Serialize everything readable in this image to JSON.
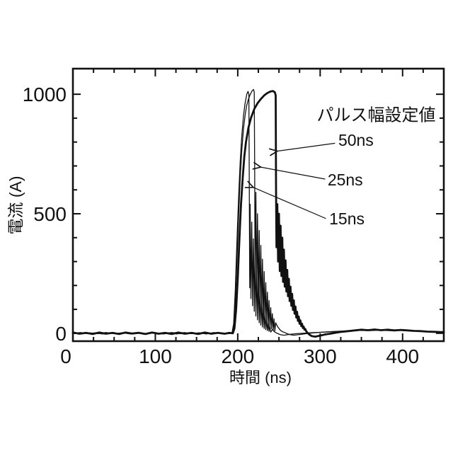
{
  "figure": {
    "background": "#ffffff",
    "ink": "#111111"
  },
  "chart_data": {
    "type": "line",
    "title": "",
    "xlabel": "時間 (ns)",
    "ylabel": "電流 (A)",
    "xlim": [
      0,
      450
    ],
    "ylim": [
      -33,
      1107
    ],
    "x_major_ticks": [
      0,
      100,
      200,
      300,
      400
    ],
    "x_minor_step": 25,
    "y_major_ticks": [
      0,
      500,
      1000
    ],
    "y_minor_step": 100,
    "grid": false,
    "legend_position": "none",
    "annotation_title": "パルス幅設定値",
    "annotation_title_at": [
      368,
      890
    ],
    "annotations": [
      {
        "label": "50ns",
        "label_at": [
          322,
          784
        ],
        "arrow_from": [
          318,
          795
        ],
        "arrow_to": [
          248,
          762
        ]
      },
      {
        "label": "25ns",
        "label_at": [
          309,
          618
        ],
        "arrow_from": [
          306,
          645
        ],
        "arrow_to": [
          228,
          695
        ]
      },
      {
        "label": "15ns",
        "label_at": [
          311,
          456
        ],
        "arrow_from": [
          307,
          480
        ],
        "arrow_to": [
          219,
          610
        ]
      }
    ],
    "series": [
      {
        "name": "15ns",
        "stroke_width": 1.3,
        "points": [
          [
            0,
            2
          ],
          [
            10,
            -3
          ],
          [
            20,
            2
          ],
          [
            30,
            -2
          ],
          [
            40,
            3
          ],
          [
            50,
            -2
          ],
          [
            60,
            2
          ],
          [
            70,
            -3
          ],
          [
            80,
            3
          ],
          [
            90,
            -2
          ],
          [
            100,
            2
          ],
          [
            110,
            -3
          ],
          [
            120,
            3
          ],
          [
            130,
            -2
          ],
          [
            140,
            2
          ],
          [
            150,
            -3
          ],
          [
            160,
            3
          ],
          [
            170,
            -2
          ],
          [
            180,
            2
          ],
          [
            188,
            -2
          ],
          [
            193,
            0
          ],
          [
            195,
            40
          ],
          [
            197,
            180
          ],
          [
            199,
            380
          ],
          [
            201,
            570
          ],
          [
            203,
            720
          ],
          [
            205,
            830
          ],
          [
            207,
            910
          ],
          [
            209,
            965
          ],
          [
            211,
            1000
          ],
          [
            212.5,
            1012
          ],
          [
            213.5,
            1000
          ],
          [
            214,
            620
          ],
          [
            214.5,
            190
          ],
          [
            215,
            540
          ],
          [
            216,
            145
          ],
          [
            217,
            465
          ],
          [
            218,
            115
          ],
          [
            219,
            395
          ],
          [
            220,
            92
          ],
          [
            221,
            330
          ],
          [
            222,
            72
          ],
          [
            223,
            272
          ],
          [
            224,
            56
          ],
          [
            225,
            222
          ],
          [
            226,
            44
          ],
          [
            227,
            178
          ],
          [
            228,
            34
          ],
          [
            229,
            140
          ],
          [
            230,
            26
          ],
          [
            231,
            108
          ],
          [
            232,
            20
          ],
          [
            233,
            82
          ],
          [
            234,
            15
          ],
          [
            235,
            60
          ],
          [
            236,
            11
          ],
          [
            237,
            43
          ],
          [
            238,
            8
          ],
          [
            239,
            30
          ],
          [
            240,
            5
          ],
          [
            242,
            16
          ],
          [
            244,
            8
          ],
          [
            246,
            3
          ],
          [
            249,
            -2
          ],
          [
            252,
            -6
          ],
          [
            256,
            -8
          ],
          [
            260,
            -6
          ],
          [
            265,
            -4
          ],
          [
            270,
            -2
          ],
          [
            278,
            0
          ],
          [
            288,
            2
          ],
          [
            300,
            4
          ],
          [
            312,
            6
          ],
          [
            324,
            8
          ],
          [
            336,
            10
          ],
          [
            348,
            12
          ],
          [
            360,
            11
          ],
          [
            372,
            13
          ],
          [
            384,
            11
          ],
          [
            396,
            12
          ],
          [
            408,
            10
          ],
          [
            420,
            9
          ],
          [
            432,
            7
          ],
          [
            444,
            6
          ],
          [
            450,
            5
          ]
        ]
      },
      {
        "name": "25ns",
        "stroke_width": 1.3,
        "points": [
          [
            0,
            -2
          ],
          [
            9,
            3
          ],
          [
            18,
            -2
          ],
          [
            27,
            2
          ],
          [
            36,
            -3
          ],
          [
            45,
            2
          ],
          [
            54,
            -2
          ],
          [
            63,
            3
          ],
          [
            72,
            -2
          ],
          [
            81,
            2
          ],
          [
            90,
            -3
          ],
          [
            99,
            3
          ],
          [
            108,
            -2
          ],
          [
            117,
            2
          ],
          [
            126,
            -3
          ],
          [
            135,
            3
          ],
          [
            144,
            -2
          ],
          [
            153,
            2
          ],
          [
            162,
            -3
          ],
          [
            171,
            3
          ],
          [
            180,
            -2
          ],
          [
            188,
            2
          ],
          [
            193,
            0
          ],
          [
            195,
            25
          ],
          [
            197,
            130
          ],
          [
            199,
            300
          ],
          [
            201,
            490
          ],
          [
            203,
            650
          ],
          [
            205,
            770
          ],
          [
            207,
            855
          ],
          [
            209,
            915
          ],
          [
            211,
            955
          ],
          [
            213,
            980
          ],
          [
            215,
            998
          ],
          [
            217,
            1012
          ],
          [
            219,
            1020
          ],
          [
            220,
            1010
          ],
          [
            220.5,
            700
          ],
          [
            221,
            230
          ],
          [
            222,
            590
          ],
          [
            223,
            170
          ],
          [
            224,
            500
          ],
          [
            225,
            135
          ],
          [
            226,
            430
          ],
          [
            227,
            108
          ],
          [
            228,
            368
          ],
          [
            229,
            86
          ],
          [
            230,
            310
          ],
          [
            231,
            68
          ],
          [
            232,
            258
          ],
          [
            233,
            54
          ],
          [
            234,
            212
          ],
          [
            235,
            42
          ],
          [
            236,
            172
          ],
          [
            237,
            33
          ],
          [
            238,
            137
          ],
          [
            239,
            25
          ],
          [
            240,
            107
          ],
          [
            241,
            19
          ],
          [
            242,
            82
          ],
          [
            243,
            14
          ],
          [
            244,
            61
          ],
          [
            245,
            10
          ],
          [
            246,
            44
          ],
          [
            248,
            30
          ],
          [
            250,
            20
          ],
          [
            252,
            12
          ],
          [
            254,
            7
          ],
          [
            257,
            3
          ],
          [
            260,
            -2
          ],
          [
            264,
            -6
          ],
          [
            268,
            -8
          ],
          [
            273,
            -6
          ],
          [
            278,
            -4
          ],
          [
            284,
            -1
          ],
          [
            292,
            2
          ],
          [
            300,
            4
          ],
          [
            310,
            6
          ],
          [
            320,
            8
          ],
          [
            330,
            10
          ],
          [
            340,
            12
          ],
          [
            350,
            14
          ],
          [
            360,
            12
          ],
          [
            370,
            14
          ],
          [
            380,
            12
          ],
          [
            390,
            11
          ],
          [
            400,
            13
          ],
          [
            410,
            11
          ],
          [
            420,
            9
          ],
          [
            430,
            7
          ],
          [
            440,
            6
          ],
          [
            450,
            5
          ]
        ]
      },
      {
        "name": "50ns",
        "stroke_width": 2.8,
        "points": [
          [
            0,
            3
          ],
          [
            8,
            -2
          ],
          [
            16,
            2
          ],
          [
            24,
            -3
          ],
          [
            32,
            3
          ],
          [
            40,
            -2
          ],
          [
            48,
            2
          ],
          [
            56,
            -3
          ],
          [
            64,
            3
          ],
          [
            72,
            -1
          ],
          [
            80,
            2
          ],
          [
            88,
            -3
          ],
          [
            96,
            3
          ],
          [
            104,
            -2
          ],
          [
            112,
            2
          ],
          [
            120,
            -3
          ],
          [
            128,
            3
          ],
          [
            136,
            -2
          ],
          [
            144,
            2
          ],
          [
            152,
            -3
          ],
          [
            160,
            3
          ],
          [
            168,
            -2
          ],
          [
            176,
            2
          ],
          [
            184,
            -2
          ],
          [
            190,
            2
          ],
          [
            194,
            0
          ],
          [
            196,
            20
          ],
          [
            198,
            100
          ],
          [
            200,
            230
          ],
          [
            202,
            390
          ],
          [
            203,
            470
          ],
          [
            204,
            540
          ],
          [
            206,
            650
          ],
          [
            208,
            740
          ],
          [
            210,
            800
          ],
          [
            213,
            860
          ],
          [
            216,
            900
          ],
          [
            220,
            938
          ],
          [
            224,
            962
          ],
          [
            228,
            980
          ],
          [
            232,
            995
          ],
          [
            236,
            1005
          ],
          [
            240,
            1012
          ],
          [
            243,
            1013
          ],
          [
            245,
            1008
          ],
          [
            246,
            995
          ],
          [
            246.5,
            600
          ],
          [
            247,
            360
          ],
          [
            248,
            540
          ],
          [
            249,
            300
          ],
          [
            250,
            500
          ],
          [
            251,
            260
          ],
          [
            252,
            450
          ],
          [
            253,
            240
          ],
          [
            254,
            400
          ],
          [
            255,
            215
          ],
          [
            256,
            350
          ],
          [
            257,
            195
          ],
          [
            258,
            305
          ],
          [
            259,
            175
          ],
          [
            260,
            265
          ],
          [
            261,
            155
          ],
          [
            262,
            228
          ],
          [
            263,
            135
          ],
          [
            264,
            195
          ],
          [
            265,
            115
          ],
          [
            266,
            165
          ],
          [
            267,
            98
          ],
          [
            268,
            138
          ],
          [
            269,
            82
          ],
          [
            270,
            112
          ],
          [
            271,
            66
          ],
          [
            272,
            90
          ],
          [
            273,
            52
          ],
          [
            274,
            70
          ],
          [
            275,
            40
          ],
          [
            276,
            54
          ],
          [
            277,
            30
          ],
          [
            278,
            40
          ],
          [
            279,
            22
          ],
          [
            280,
            28
          ],
          [
            281,
            15
          ],
          [
            282,
            18
          ],
          [
            283,
            9
          ],
          [
            284,
            5
          ],
          [
            286,
            -3
          ],
          [
            288,
            -8
          ],
          [
            290,
            -12
          ],
          [
            294,
            -14
          ],
          [
            298,
            -11
          ],
          [
            302,
            -8
          ],
          [
            306,
            -5
          ],
          [
            312,
            -2
          ],
          [
            318,
            2
          ],
          [
            326,
            6
          ],
          [
            334,
            9
          ],
          [
            342,
            12
          ],
          [
            350,
            15
          ],
          [
            358,
            13
          ],
          [
            366,
            16
          ],
          [
            374,
            13
          ],
          [
            382,
            15
          ],
          [
            390,
            12
          ],
          [
            398,
            14
          ],
          [
            406,
            12
          ],
          [
            414,
            10
          ],
          [
            422,
            9
          ],
          [
            430,
            7
          ],
          [
            438,
            6
          ],
          [
            446,
            5
          ],
          [
            450,
            5
          ]
        ]
      }
    ]
  }
}
